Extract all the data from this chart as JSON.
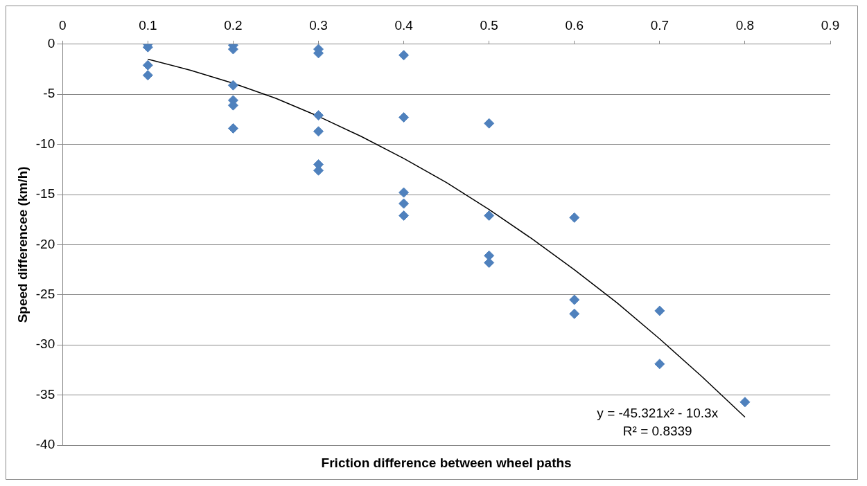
{
  "chart_data": {
    "type": "scatter",
    "xlabel": "Friction difference between wheel paths",
    "ylabel": "Speed differencee (km/h)",
    "xlim": [
      0,
      0.9
    ],
    "xticks": [
      0,
      0.1,
      0.2,
      0.3,
      0.4,
      0.5,
      0.6,
      0.7,
      0.8,
      0.9
    ],
    "ylim": [
      -40,
      0
    ],
    "yticks": [
      -40,
      -35,
      -30,
      -25,
      -20,
      -15,
      -10,
      -5,
      0
    ],
    "grid": "y",
    "legend": false,
    "annotations": [
      "y = -45.321x² - 10.3x",
      "R² = 0.8339"
    ],
    "series": [
      {
        "type": "scatter",
        "color": "#4f81bd",
        "marker": "diamond",
        "x": [
          0.1,
          0.1,
          0.1,
          0.1,
          0.2,
          0.2,
          0.2,
          0.2,
          0.2,
          0.2,
          0.3,
          0.3,
          0.3,
          0.3,
          0.3,
          0.3,
          0.4,
          0.4,
          0.4,
          0.4,
          0.4,
          0.5,
          0.5,
          0.5,
          0.5,
          0.6,
          0.6,
          0.6,
          0.7,
          0.7,
          0.8
        ],
        "values": [
          0,
          -0.3,
          -2.1,
          -3.1,
          -0.1,
          -0.5,
          -4.1,
          -5.6,
          -6.1,
          -8.4,
          -0.5,
          -0.9,
          -7.1,
          -8.7,
          -12,
          -12.6,
          -1.1,
          -7.3,
          -14.8,
          -15.9,
          -17.1,
          -7.9,
          -17.1,
          -21.1,
          -21.8,
          -17.3,
          -25.5,
          -26.9,
          -26.6,
          -31.9,
          -35.7
        ]
      },
      {
        "type": "line",
        "color": "#000000",
        "marker": "none",
        "x": [
          0.1,
          0.15,
          0.2,
          0.25,
          0.3,
          0.35,
          0.4,
          0.45,
          0.5,
          0.55,
          0.6,
          0.65,
          0.7,
          0.75,
          0.8
        ],
        "values": [
          -1.5,
          -2.6,
          -3.9,
          -5.4,
          -7.2,
          -9.2,
          -11.4,
          -13.8,
          -16.5,
          -19.4,
          -22.5,
          -25.8,
          -29.4,
          -33.2,
          -37.2
        ]
      }
    ]
  }
}
